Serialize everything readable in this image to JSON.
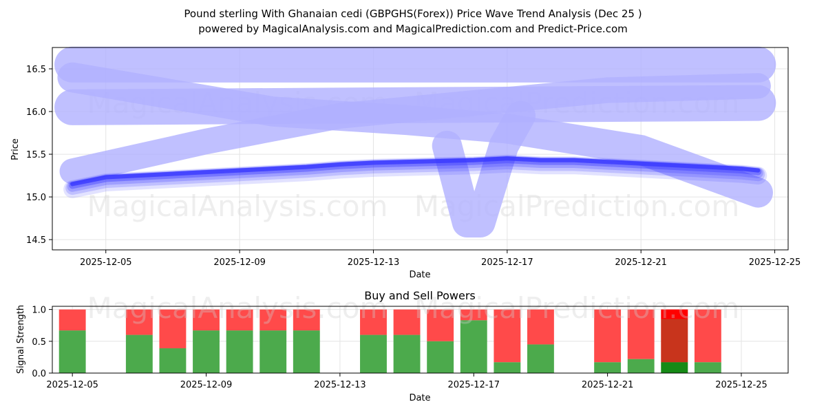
{
  "chart_data": [
    {
      "type": "line",
      "title_line1": "Pound sterling With Ghanaian cedi (GBPGHS(Forex)) Price Wave Trend Analysis (Dec 25 )",
      "title_line2": "powered by MagicalAnalysis.com and MagicalPrediction.com and Predict-Price.com",
      "xlabel": "Date",
      "ylabel": "Price",
      "xlim_days": [
        -0.6,
        21.4
      ],
      "ylim": [
        14.38,
        16.75
      ],
      "x_origin": "2025-12-04",
      "xticks": [
        {
          "day": 1,
          "label": "2025-12-05"
        },
        {
          "day": 5,
          "label": "2025-12-09"
        },
        {
          "day": 9,
          "label": "2025-12-13"
        },
        {
          "day": 13,
          "label": "2025-12-17"
        },
        {
          "day": 17,
          "label": "2025-12-21"
        },
        {
          "day": 21,
          "label": "2025-12-25"
        }
      ],
      "yticks": [
        {
          "value": 14.5,
          "label": "14.5"
        },
        {
          "value": 15.0,
          "label": "15.0"
        },
        {
          "value": 15.5,
          "label": "15.5"
        },
        {
          "value": 16.0,
          "label": "16.0"
        },
        {
          "value": 16.5,
          "label": "16.5"
        }
      ],
      "grid": true,
      "watermarks": [
        "MagicalAnalysis.com",
        "MagicalPrediction.com"
      ],
      "band_color": "#b0b0ff",
      "line_color": "#3a3aff",
      "wave_bands": [
        {
          "name": "upper-band",
          "x": [
            0,
            20.5
          ],
          "y": [
            16.55,
            16.55
          ],
          "width": 0.42
        },
        {
          "name": "second-band",
          "x": [
            0,
            20.5
          ],
          "y": [
            16.05,
            16.1
          ],
          "width": 0.42
        },
        {
          "name": "descending-band",
          "x": [
            0,
            6,
            10,
            13,
            17,
            20.5
          ],
          "y": [
            16.4,
            16.0,
            15.9,
            15.8,
            15.55,
            15.05
          ],
          "width": 0.35
        },
        {
          "name": "ascending-band",
          "x": [
            0,
            4,
            8,
            12,
            16,
            20.5
          ],
          "y": [
            15.3,
            15.65,
            15.95,
            16.1,
            16.25,
            16.3
          ],
          "width": 0.3
        },
        {
          "name": "dip-band",
          "x": [
            11.2,
            11.8,
            12.2,
            12.9,
            13.4
          ],
          "y": [
            15.6,
            14.7,
            14.7,
            15.6,
            15.95
          ],
          "width": 0.35
        }
      ],
      "series": [
        {
          "name": "price-trend",
          "x": [
            0,
            1,
            2,
            3,
            4,
            5,
            6,
            7,
            8,
            9,
            10,
            11,
            12,
            13,
            14,
            15,
            16,
            17,
            18,
            19,
            20,
            20.5
          ],
          "y": [
            15.12,
            15.2,
            15.22,
            15.24,
            15.26,
            15.28,
            15.3,
            15.32,
            15.35,
            15.37,
            15.38,
            15.39,
            15.4,
            15.42,
            15.4,
            15.4,
            15.38,
            15.36,
            15.34,
            15.32,
            15.3,
            15.28
          ]
        }
      ]
    },
    {
      "type": "bar",
      "title": "Buy and Sell Powers",
      "xlabel": "Date",
      "ylabel": "Signal Strength",
      "xlim_days": [
        -0.6,
        21.4
      ],
      "ylim": [
        0,
        1.05
      ],
      "xticks": [
        {
          "day": 0,
          "label": "2025-12-05"
        },
        {
          "day": 4,
          "label": "2025-12-09"
        },
        {
          "day": 8,
          "label": "2025-12-13"
        },
        {
          "day": 12,
          "label": "2025-12-17"
        },
        {
          "day": 16,
          "label": "2025-12-21"
        },
        {
          "day": 20,
          "label": "2025-12-25"
        }
      ],
      "yticks": [
        {
          "value": 0,
          "label": "0.0"
        },
        {
          "value": 0.5,
          "label": "0.5"
        },
        {
          "value": 1.0,
          "label": "1.0"
        }
      ],
      "buy_color": "#4caa4c",
      "sell_color": "#ff4a4a",
      "bars": [
        {
          "day": 0,
          "buy": 0.67
        },
        {
          "day": 2,
          "buy": 0.6
        },
        {
          "day": 3,
          "buy": 0.39
        },
        {
          "day": 4,
          "buy": 0.67
        },
        {
          "day": 5,
          "buy": 0.67
        },
        {
          "day": 6,
          "buy": 0.67
        },
        {
          "day": 7,
          "buy": 0.67
        },
        {
          "day": 9,
          "buy": 0.6
        },
        {
          "day": 10,
          "buy": 0.6
        },
        {
          "day": 11,
          "buy": 0.5
        },
        {
          "day": 12,
          "buy": 0.83
        },
        {
          "day": 13,
          "buy": 0.17
        },
        {
          "day": 14,
          "buy": 0.45
        },
        {
          "day": 16,
          "buy": 0.17
        },
        {
          "day": 17,
          "buy": 0.22
        },
        {
          "day": 18,
          "buy": 0.17,
          "highlight": true,
          "mid": 0.85
        },
        {
          "day": 19,
          "buy": 0.17
        }
      ]
    }
  ]
}
